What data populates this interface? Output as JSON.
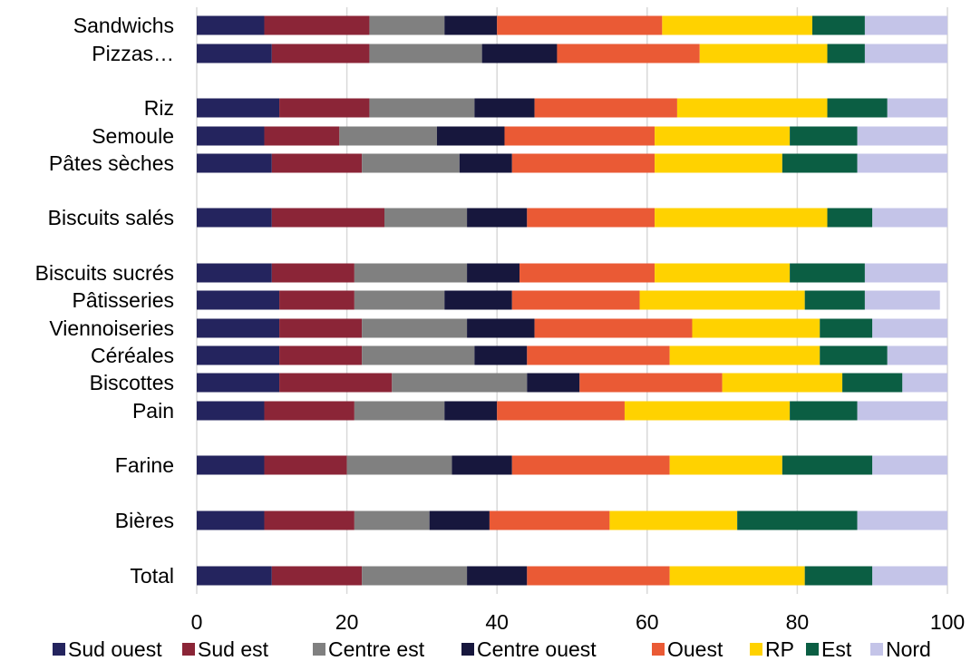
{
  "chart_data": {
    "type": "bar",
    "orientation": "horizontal",
    "stacked": true,
    "categories": [
      "Sandwichs",
      "Pizzas…",
      "Riz",
      "Semoule",
      "Pâtes sèches",
      "Biscuits salés",
      "Biscuits sucrés",
      "Pâtisseries",
      "Viennoiseries",
      "Céréales",
      "Biscottes",
      "Pain",
      "Farine",
      "Bières",
      "Total"
    ],
    "series": [
      {
        "name": "Sud ouest",
        "color": "#24245e",
        "values": [
          9,
          10,
          11,
          9,
          10,
          10,
          10,
          11,
          11,
          11,
          11,
          9,
          9,
          9,
          10
        ]
      },
      {
        "name": "Sud est",
        "color": "#8b2537",
        "values": [
          14,
          13,
          12,
          10,
          12,
          15,
          11,
          10,
          11,
          11,
          15,
          12,
          11,
          12,
          12
        ]
      },
      {
        "name": "Centre est",
        "color": "#808080",
        "values": [
          10,
          15,
          14,
          13,
          13,
          11,
          15,
          12,
          14,
          15,
          18,
          12,
          14,
          10,
          14
        ]
      },
      {
        "name": "Centre ouest",
        "color": "#17173d",
        "values": [
          7,
          10,
          8,
          9,
          7,
          8,
          7,
          9,
          9,
          7,
          7,
          7,
          8,
          8,
          8
        ]
      },
      {
        "name": "Ouest",
        "color": "#ea5a35",
        "values": [
          22,
          19,
          19,
          20,
          19,
          17,
          18,
          17,
          21,
          19,
          19,
          17,
          21,
          16,
          19
        ]
      },
      {
        "name": "RP",
        "color": "#ffd200",
        "values": [
          20,
          17,
          20,
          18,
          17,
          23,
          18,
          22,
          17,
          20,
          16,
          22,
          15,
          17,
          18
        ]
      },
      {
        "name": "Est",
        "color": "#0b5e43",
        "values": [
          7,
          5,
          8,
          9,
          10,
          6,
          10,
          8,
          7,
          9,
          8,
          9,
          12,
          16,
          9
        ]
      },
      {
        "name": "Nord",
        "color": "#c4c4e8",
        "values": [
          11,
          11,
          8,
          12,
          12,
          10,
          11,
          10,
          10,
          8,
          6,
          12,
          10,
          12,
          10
        ]
      }
    ],
    "xlim": [
      0,
      100
    ],
    "xticks": [
      "0",
      "20",
      "40",
      "60",
      "80",
      "100"
    ],
    "grid": true,
    "legend": "bottom",
    "title": "",
    "xlabel": "",
    "ylabel": ""
  }
}
